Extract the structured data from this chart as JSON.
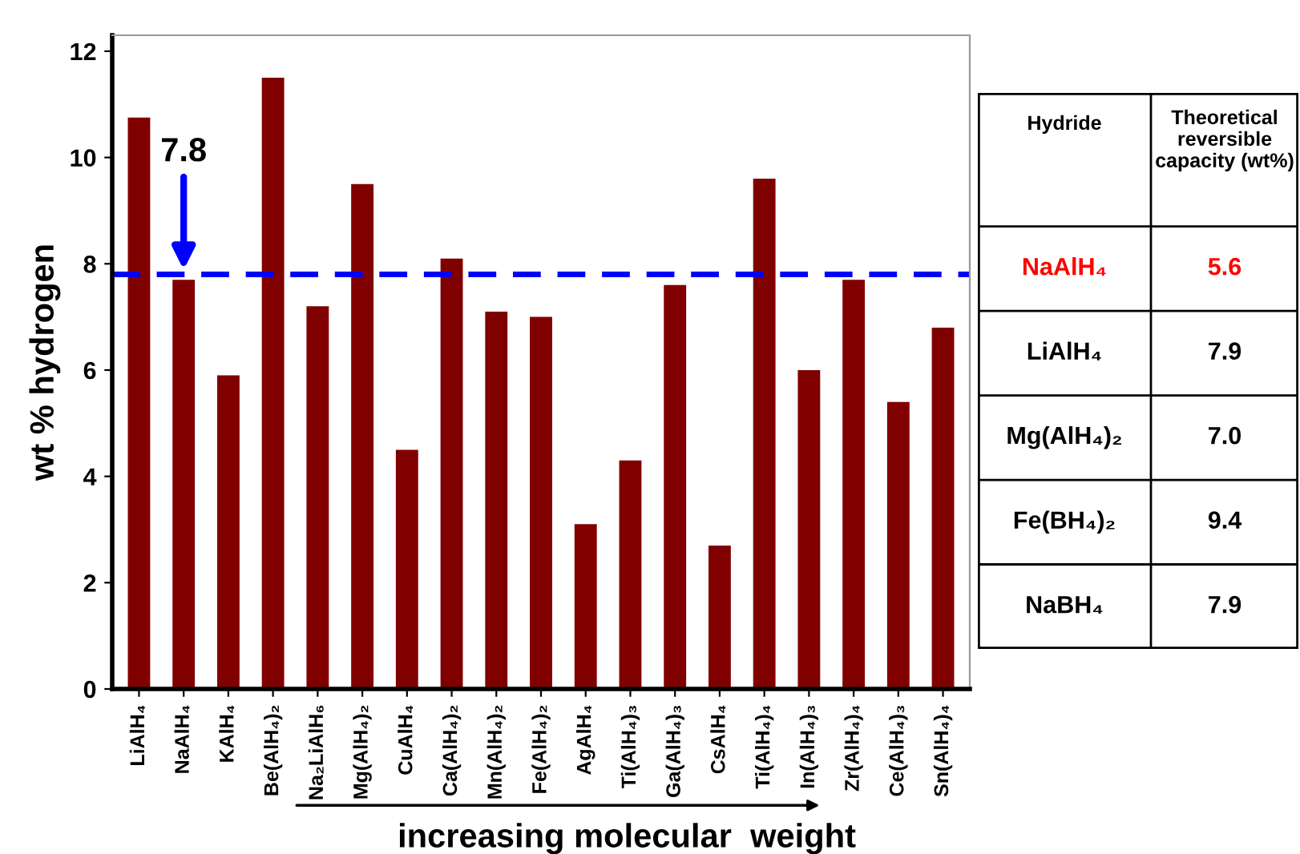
{
  "chart_data": [
    {
      "type": "bar",
      "ylabel": "wt % hydrogen",
      "xlabel": "increasing molecular  weight",
      "categories": [
        "LiAlH₄",
        "NaAlH₄",
        "KAlH₄",
        "Be(AlH₄)₂",
        "Na₂LiAlH₆",
        "Mg(AlH₄)₂",
        "CuAlH₄",
        "Ca(AlH₄)₂",
        "Mn(AlH₄)₂",
        "Fe(AlH₄)₂",
        "AgAlH₄",
        "Ti(AlH₄)₃",
        "Ga(AlH₄)₃",
        "CsAlH₄",
        "Ti(AlH₄)₄",
        "In(AlH₄)₃",
        "Zr(AlH₄)₄",
        "Ce(AlH₄)₃",
        "Sn(AlH₄)₄"
      ],
      "values": [
        10.75,
        7.7,
        5.9,
        11.5,
        7.2,
        9.5,
        4.5,
        8.1,
        7.1,
        7.0,
        3.1,
        4.3,
        7.6,
        2.7,
        9.6,
        6.0,
        7.7,
        5.4,
        6.8
      ],
      "color": "#800000",
      "ylim": [
        0,
        12.3
      ],
      "yticks": [
        0,
        2,
        4,
        6,
        8,
        10,
        12
      ],
      "grid": false,
      "legend": false,
      "ref_lines": [
        {
          "axis": "y",
          "value": 7.8,
          "label": "7.8",
          "color": "#0000ff",
          "line_style": "dashed"
        }
      ]
    },
    {
      "type": "other",
      "xlabel": "Hydride",
      "ylabel": "Theoretical reversible capacity (wt%)",
      "categories": [
        "NaAlH₄",
        "LiAlH₄",
        "Mg(AlH₄)₂",
        "Fe(BH₄)₂",
        "NaBH₄"
      ],
      "values": [
        5.6,
        7.9,
        7.0,
        9.4,
        7.9
      ],
      "value_labels": [
        "5.6",
        "7.9",
        "7.0",
        "9.4",
        "7.9"
      ],
      "colors": [
        "#ff0000",
        "#000000",
        "#000000",
        "#000000",
        "#000000"
      ]
    }
  ]
}
